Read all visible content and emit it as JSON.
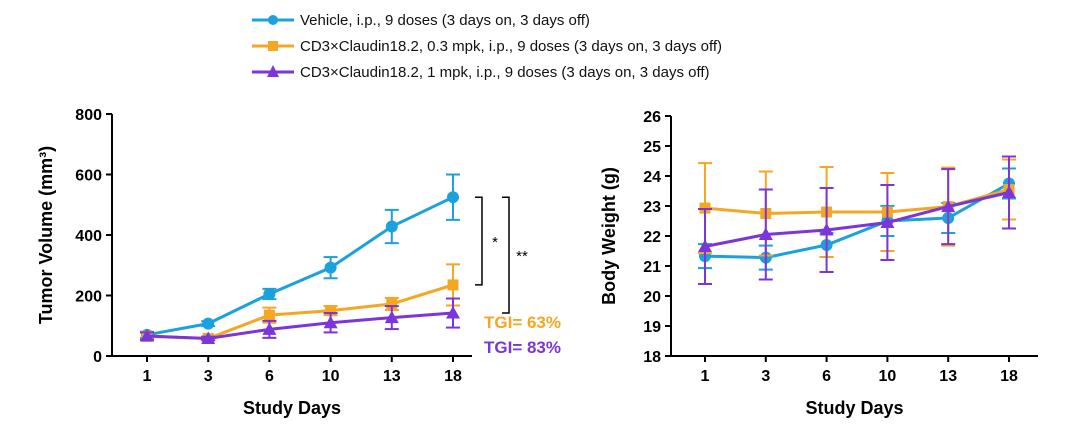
{
  "legend": [
    {
      "label": "Vehicle, i.p., 9 doses (3 days on, 3 days off)",
      "color": "#1ba1dc",
      "marker": "circle"
    },
    {
      "label": "CD3×Claudin18.2, 0.3 mpk, i.p., 9 doses (3 days on, 3 days off)",
      "color": "#f5a623",
      "marker": "square"
    },
    {
      "label": "CD3×Claudin18.2, 1 mpk, i.p., 9 doses (3 days on, 3 days off)",
      "color": "#7b35d9",
      "marker": "triangle"
    }
  ],
  "chart_data": [
    {
      "type": "line",
      "title": "",
      "xlabel": "Study Days",
      "ylabel": "Tumor Volume (mm³)",
      "categories": [
        "1",
        "3",
        "6",
        "10",
        "13",
        "18"
      ],
      "ylim": [
        0,
        800
      ],
      "yticks": [
        0,
        200,
        400,
        600,
        800
      ],
      "series": [
        {
          "name": "Vehicle, i.p., 9 doses (3 days on, 3 days off)",
          "color": "#1ba1dc",
          "marker": "circle",
          "values": [
            70,
            107,
            205,
            292,
            428,
            525
          ],
          "errors": [
            10,
            8,
            17,
            35,
            55,
            75
          ]
        },
        {
          "name": "CD3×Claudin18.2, 0.3 mpk, i.p., 9 doses (3 days on, 3 days off)",
          "color": "#f5a623",
          "marker": "square",
          "values": [
            65,
            58,
            135,
            150,
            172,
            235
          ],
          "errors": [
            12,
            6,
            25,
            15,
            20,
            68
          ]
        },
        {
          "name": "CD3×Claudin18.2, 1 mpk, i.p., 9 doses (3 days on, 3 days off)",
          "color": "#7b35d9",
          "marker": "triangle",
          "values": [
            66,
            58,
            88,
            110,
            127,
            142
          ],
          "errors": [
            12,
            6,
            28,
            32,
            38,
            48
          ]
        }
      ],
      "significance": [
        {
          "label": "*",
          "from": 235,
          "to": 525
        },
        {
          "label": "**",
          "from": 142,
          "to": 525
        }
      ],
      "annotations": [
        {
          "text": "TGI= 63%",
          "color": "#f5a623"
        },
        {
          "text": "TGI= 83%",
          "color": "#7b35d9"
        }
      ]
    },
    {
      "type": "line",
      "title": "",
      "xlabel": "Study Days",
      "ylabel": "Body Weight (g)",
      "categories": [
        "1",
        "3",
        "6",
        "10",
        "13",
        "18"
      ],
      "ylim": [
        18,
        26
      ],
      "yticks": [
        18,
        19,
        20,
        21,
        22,
        23,
        24,
        25,
        26
      ],
      "series": [
        {
          "name": "Vehicle, i.p., 9 doses (3 days on, 3 days off)",
          "color": "#1ba1dc",
          "marker": "circle",
          "values": [
            21.33,
            21.28,
            21.7,
            22.5,
            22.6,
            23.75
          ],
          "errors": [
            0.4,
            0.4,
            0.4,
            0.5,
            0.5,
            0.5
          ]
        },
        {
          "name": "CD3×Claudin18.2, 0.3 mpk, i.p., 9 doses (3 days on, 3 days off)",
          "color": "#f5a623",
          "marker": "square",
          "values": [
            22.93,
            22.75,
            22.8,
            22.8,
            22.98,
            23.55
          ],
          "errors": [
            1.5,
            1.4,
            1.5,
            1.3,
            1.3,
            1.0
          ]
        },
        {
          "name": "CD3×Claudin18.2, 1 mpk, i.p., 9 doses (3 days on, 3 days off)",
          "color": "#7b35d9",
          "marker": "triangle",
          "values": [
            21.65,
            22.05,
            22.2,
            22.45,
            22.98,
            23.45
          ],
          "errors": [
            1.25,
            1.5,
            1.4,
            1.25,
            1.25,
            1.2
          ]
        }
      ],
      "significance": [],
      "annotations": []
    }
  ]
}
